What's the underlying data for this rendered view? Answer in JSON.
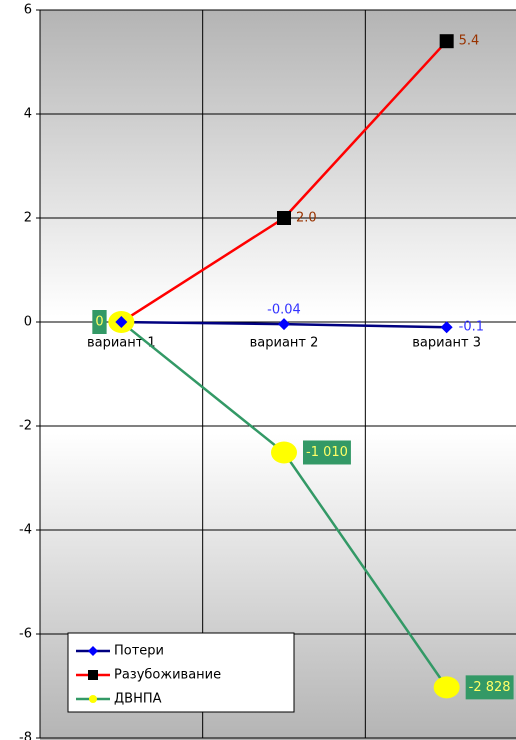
{
  "chart_data": {
    "type": "line",
    "categories": [
      "вариант 1",
      "вариант 2",
      "вариант 3"
    ],
    "series": [
      {
        "name": "Потери",
        "color": "#000080",
        "marker_color": "#0000ff",
        "label_color": "#3333ff",
        "marker": "diamond",
        "values": [
          0,
          -0.04,
          -0.1
        ],
        "value_labels": [
          null,
          "-0.04",
          "-0.1"
        ]
      },
      {
        "name": "Разубоживание",
        "color": "#ff0000",
        "marker_color": "#000000",
        "label_color": "#993300",
        "marker": "square",
        "values": [
          0,
          2.0,
          5.4
        ],
        "value_labels": [
          null,
          "2.0",
          "5.4"
        ]
      },
      {
        "name": "ДВНПА",
        "color": "#339966",
        "marker_color": "#ffff00",
        "label_color": "#ffff66",
        "label_background": "#339966",
        "marker": "circle",
        "axis": "y2",
        "values": [
          0,
          -1010,
          -2828
        ],
        "value_labels": [
          "0",
          "-1 010",
          "-2 828"
        ]
      }
    ],
    "ylim": [
      -8,
      6
    ],
    "yticks": [
      -8,
      -6,
      -4,
      -2,
      0,
      2,
      4,
      6
    ],
    "y2lim": [
      -3220,
      2415
    ],
    "grid": true,
    "legend": "lower left"
  }
}
